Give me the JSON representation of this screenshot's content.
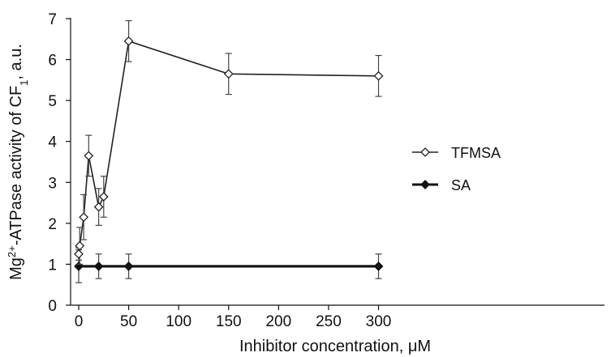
{
  "chart_data": {
    "type": "line",
    "title": "",
    "xlabel": "Inhibitor concentration, μM",
    "ylabel_parts": [
      "Mg",
      "2+",
      "-ATPase activity of CF",
      "1",
      ", a.u."
    ],
    "xlim": [
      -3,
      330
    ],
    "ylim": [
      0,
      7
    ],
    "xticks": [
      0,
      50,
      100,
      150,
      200,
      250,
      300
    ],
    "yticks": [
      0,
      1,
      2,
      3,
      4,
      5,
      6,
      7
    ],
    "grid": false,
    "legend_position": "center-right",
    "series": [
      {
        "name": "TFMSA",
        "marker": "open-diamond",
        "color": "#222222",
        "x": [
          0,
          1,
          5,
          10,
          20,
          25,
          50,
          150,
          300
        ],
        "y": [
          1.25,
          1.45,
          2.15,
          3.65,
          2.4,
          2.65,
          6.45,
          5.65,
          5.6
        ],
        "err": [
          0.15,
          0.45,
          0.55,
          0.5,
          0.45,
          0.5,
          0.5,
          0.5,
          0.5
        ]
      },
      {
        "name": "SA",
        "marker": "filled-diamond",
        "color": "#111111",
        "x": [
          0,
          20,
          50,
          300
        ],
        "y": [
          0.95,
          0.95,
          0.95,
          0.95
        ],
        "err": [
          0.4,
          0.3,
          0.3,
          0.3
        ]
      }
    ]
  }
}
